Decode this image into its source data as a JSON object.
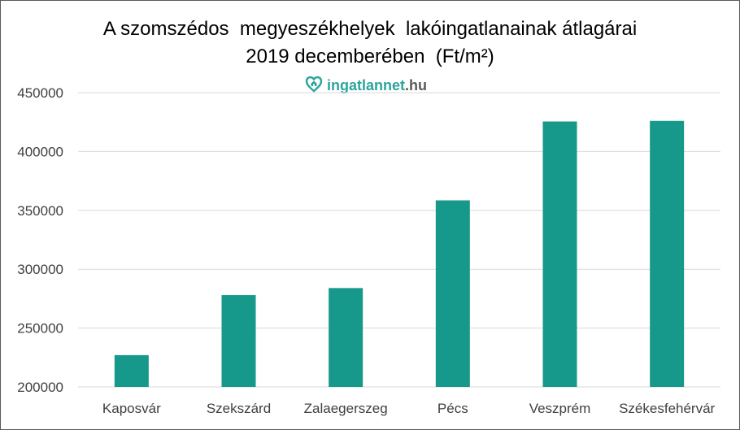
{
  "chart_data": {
    "type": "bar",
    "title": "A szomszédos  megyeszékhelyek  lakóingatlanainak átlagárai",
    "subtitle": "2019 decemberében  (Ft/m²)",
    "xlabel": "",
    "ylabel": "",
    "categories": [
      "Kaposvár",
      "Szekszárd",
      "Zalaegerszeg",
      "Pécs",
      "Veszprém",
      "Székesfehérvár"
    ],
    "values": [
      227000,
      278000,
      284000,
      358500,
      425500,
      426000
    ],
    "ylim": [
      200000,
      450000
    ],
    "yticks": [
      "200000",
      "250000",
      "300000",
      "350000",
      "400000",
      "450000"
    ],
    "grid": true,
    "legend": "none",
    "bar_color": "#16998a"
  },
  "watermark": {
    "name": "ingatlannet",
    "tld": ".hu",
    "icon": "house-heart-icon",
    "color": "#2ba59b"
  }
}
